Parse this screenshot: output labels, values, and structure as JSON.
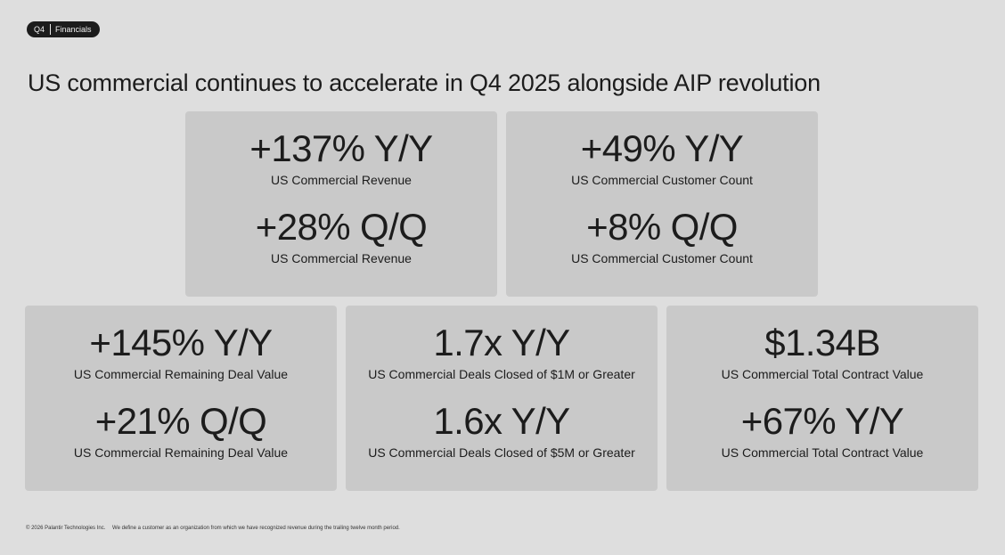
{
  "badge": {
    "quarter": "Q4",
    "section": "Financials"
  },
  "title": "US commercial continues to accelerate in Q4 2025 alongside AIP revolution",
  "cards": [
    {
      "value1": "+137% Y/Y",
      "label1": "US Commercial Revenue",
      "value2": "+28% Q/Q",
      "label2": "US Commercial Revenue"
    },
    {
      "value1": "+49% Y/Y",
      "label1": "US Commercial Customer Count",
      "value2": "+8% Q/Q",
      "label2": "US Commercial Customer Count"
    },
    {
      "value1": "+145% Y/Y",
      "label1": "US Commercial Remaining Deal Value",
      "value2": "+21% Q/Q",
      "label2": "US Commercial Remaining Deal Value"
    },
    {
      "value1": "1.7x Y/Y",
      "label1": "US Commercial Deals Closed of $1M or Greater",
      "value2": "1.6x Y/Y",
      "label2": "US Commercial Deals Closed of $5M or Greater"
    },
    {
      "value1": "$1.34B",
      "label1": "US Commercial Total Contract Value",
      "value2": "+67% Y/Y",
      "label2": "US Commercial Total Contract Value"
    }
  ],
  "footer": {
    "copyright": "© 2026 Palantir Technologies Inc.",
    "note": "We define a customer as an organization from which we have recognized revenue during the trailing twelve month period."
  }
}
